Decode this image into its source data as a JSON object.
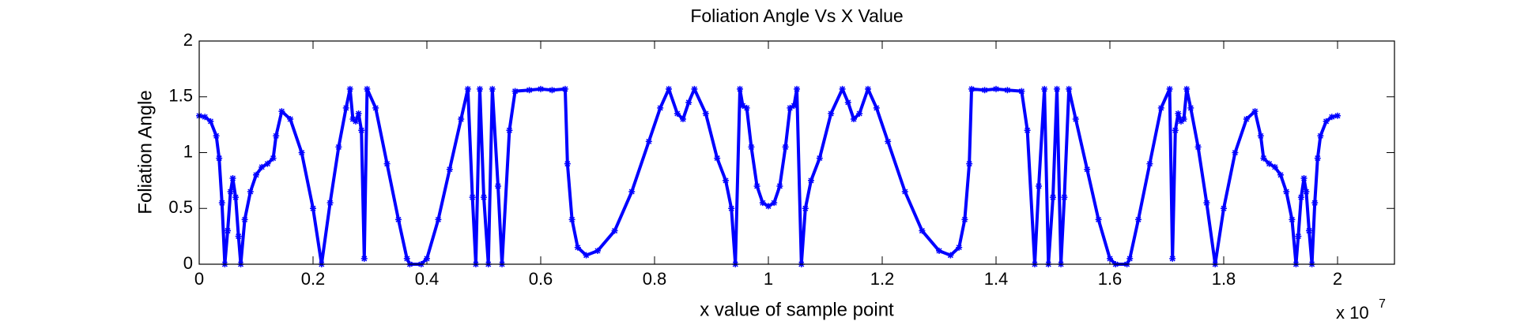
{
  "chart_data": {
    "type": "line",
    "title": "Foliation Angle Vs X Value",
    "xlabel": "x value of sample point",
    "ylabel": "Foliation Angle",
    "x_multiplier": "x 10",
    "x_multiplier_exponent": "7",
    "xlim": [
      0,
      2.1
    ],
    "ylim": [
      0,
      2
    ],
    "xticks": [
      0,
      0.2,
      0.4,
      0.6,
      0.8,
      1,
      1.2,
      1.4,
      1.6,
      1.8,
      2
    ],
    "yticks": [
      0,
      0.5,
      1,
      1.5,
      2
    ],
    "grid": false,
    "series": [
      {
        "color": "#0000ff",
        "x": [
          0,
          0.01,
          0.02,
          0.03,
          0.035,
          0.04,
          0.045,
          0.05,
          0.055,
          0.059,
          0.064,
          0.069,
          0.073,
          0.08,
          0.09,
          0.1,
          0.11,
          0.12,
          0.13,
          0.135,
          0.145,
          0.16,
          0.18,
          0.2,
          0.215,
          0.23,
          0.245,
          0.258,
          0.265,
          0.27,
          0.275,
          0.28,
          0.285,
          0.29,
          0.295,
          0.31,
          0.33,
          0.35,
          0.365,
          0.37,
          0.39,
          0.4,
          0.42,
          0.44,
          0.46,
          0.472,
          0.48,
          0.486,
          0.493,
          0.5,
          0.508,
          0.515,
          0.525,
          0.532,
          0.545,
          0.555,
          0.58,
          0.6,
          0.62,
          0.643,
          0.647,
          0.655,
          0.665,
          0.68,
          0.7,
          0.73,
          0.76,
          0.79,
          0.81,
          0.825,
          0.84,
          0.85,
          0.86,
          0.87,
          0.89,
          0.91,
          0.925,
          0.935,
          0.942,
          0.95,
          0.955,
          0.962,
          0.97,
          0.98,
          0.99,
          1.0,
          1.01,
          1.02,
          1.03,
          1.038,
          1.045,
          1.05,
          1.058,
          1.065,
          1.075,
          1.09,
          1.11,
          1.13,
          1.14,
          1.15,
          1.16,
          1.175,
          1.19,
          1.21,
          1.24,
          1.27,
          1.3,
          1.32,
          1.335,
          1.345,
          1.353,
          1.357,
          1.38,
          1.4,
          1.42,
          1.445,
          1.455,
          1.468,
          1.475,
          1.485,
          1.492,
          1.5,
          1.507,
          1.514,
          1.52,
          1.528,
          1.54,
          1.56,
          1.58,
          1.6,
          1.61,
          1.63,
          1.635,
          1.65,
          1.67,
          1.69,
          1.705,
          1.71,
          1.715,
          1.72,
          1.725,
          1.73,
          1.735,
          1.742,
          1.755,
          1.77,
          1.785,
          1.8,
          1.82,
          1.84,
          1.855,
          1.865,
          1.87,
          1.88,
          1.89,
          1.9,
          1.91,
          1.92,
          1.927,
          1.931,
          1.936,
          1.941,
          1.945,
          1.95,
          1.955,
          1.96,
          1.965,
          1.97,
          1.98,
          1.99,
          2.0
        ],
        "values": [
          1.33,
          1.32,
          1.28,
          1.15,
          0.95,
          0.55,
          0,
          0.3,
          0.65,
          0.77,
          0.6,
          0.25,
          0,
          0.4,
          0.65,
          0.8,
          0.87,
          0.9,
          0.95,
          1.15,
          1.37,
          1.3,
          1.0,
          0.5,
          0,
          0.55,
          1.05,
          1.4,
          1.57,
          1.3,
          1.28,
          1.35,
          1.2,
          0.05,
          1.57,
          1.4,
          0.9,
          0.4,
          0.05,
          0,
          0,
          0.05,
          0.4,
          0.85,
          1.3,
          1.57,
          0.6,
          0,
          1.57,
          0.6,
          0,
          1.57,
          0.7,
          0,
          1.2,
          1.55,
          1.56,
          1.57,
          1.56,
          1.57,
          0.9,
          0.4,
          0.15,
          0.08,
          0.12,
          0.3,
          0.65,
          1.1,
          1.4,
          1.57,
          1.35,
          1.3,
          1.45,
          1.57,
          1.35,
          0.95,
          0.75,
          0.5,
          0,
          1.57,
          1.42,
          1.4,
          1.05,
          0.7,
          0.55,
          0.52,
          0.55,
          0.7,
          1.05,
          1.4,
          1.42,
          1.57,
          0,
          0.5,
          0.75,
          0.95,
          1.35,
          1.57,
          1.45,
          1.3,
          1.35,
          1.57,
          1.4,
          1.1,
          0.65,
          0.3,
          0.12,
          0.08,
          0.15,
          0.4,
          0.9,
          1.57,
          1.56,
          1.57,
          1.56,
          1.55,
          1.2,
          0,
          0.7,
          1.57,
          0,
          0.6,
          1.57,
          0,
          0.6,
          1.57,
          1.3,
          0.85,
          0.4,
          0.05,
          0,
          0,
          0.05,
          0.4,
          0.9,
          1.4,
          1.57,
          0.05,
          1.2,
          1.35,
          1.28,
          1.3,
          1.57,
          1.4,
          1.05,
          0.55,
          0,
          0.5,
          1.0,
          1.3,
          1.37,
          1.15,
          0.95,
          0.9,
          0.87,
          0.8,
          0.65,
          0.4,
          0,
          0.25,
          0.6,
          0.77,
          0.65,
          0.3,
          0,
          0.55,
          0.95,
          1.15,
          1.28,
          1.32,
          1.33
        ]
      }
    ]
  }
}
